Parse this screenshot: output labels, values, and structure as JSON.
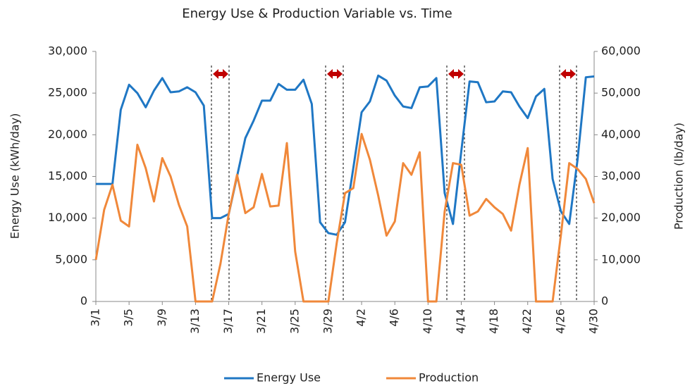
{
  "chart_data": {
    "type": "line",
    "title": "Energy Use & Production Variable vs. Time",
    "y_label": "Energy Use (kWh/day)",
    "y2_label": "Production (lb/day)",
    "categories": [
      "3/1",
      null,
      null,
      null,
      "3/5",
      null,
      null,
      null,
      "3/9",
      null,
      null,
      null,
      "3/13",
      null,
      null,
      null,
      "3/17",
      null,
      null,
      null,
      "3/21",
      null,
      null,
      null,
      "3/25",
      null,
      null,
      null,
      "3/29",
      null,
      null,
      null,
      "4/2",
      null,
      null,
      null,
      "4/6",
      null,
      null,
      null,
      "4/10",
      null,
      null,
      null,
      "4/14",
      null,
      null,
      null,
      "4/18",
      null,
      null,
      null,
      "4/22",
      null,
      null,
      null,
      "4/26",
      null,
      null,
      null,
      "4/30"
    ],
    "series": [
      {
        "name": "Energy Use",
        "color": "#1f77c4",
        "values": [
          14100,
          14100,
          14100,
          23000,
          26000,
          25000,
          23300,
          25300,
          26800,
          25100,
          25200,
          25700,
          25100,
          23500,
          10000,
          10000,
          10500,
          15000,
          19600,
          21700,
          24100,
          24100,
          26100,
          25400,
          25400,
          26600,
          23700,
          9500,
          8200,
          8000,
          9500,
          16000,
          22700,
          24000,
          27100,
          26500,
          24700,
          23400,
          23200,
          25700,
          25800,
          26800,
          13000,
          9300,
          18000,
          26400,
          26300,
          23900,
          24000,
          25200,
          25100,
          23400,
          22000,
          24600,
          25500,
          14700,
          10800,
          9300,
          17000,
          26900,
          27000
        ]
      },
      {
        "name": "Production",
        "color": "#f0883a",
        "axis": "y2",
        "values": [
          10000,
          22000,
          28000,
          19400,
          18000,
          37600,
          32000,
          24000,
          34400,
          30000,
          23200,
          18000,
          0,
          0,
          0,
          9000,
          21000,
          30400,
          21200,
          22600,
          30600,
          22800,
          23000,
          38000,
          12000,
          0,
          0,
          0,
          0,
          14000,
          26000,
          27200,
          40200,
          34000,
          25400,
          15800,
          19200,
          33200,
          30400,
          35800,
          0,
          0,
          21600,
          33200,
          32800,
          20600,
          21600,
          24600,
          22600,
          21000,
          17000,
          28000,
          36800,
          0,
          0,
          0,
          16000,
          33200,
          31800,
          29400,
          23600
        ]
      }
    ],
    "ylim": [
      0,
      30000
    ],
    "yticks": [
      0,
      {
        "value": 5000,
        "label": "5,000"
      },
      {
        "value": 10000,
        "label": "10,000"
      },
      {
        "value": 15000,
        "label": "15,000"
      },
      {
        "value": 20000,
        "label": "20,000"
      },
      {
        "value": 25000,
        "label": "25,000"
      },
      {
        "value": 30000,
        "label": "30,000"
      }
    ],
    "y2lim": [
      0,
      60000
    ],
    "y2ticks": [
      0,
      {
        "value": 10000,
        "label": "10,000"
      },
      {
        "value": 20000,
        "label": "20,000"
      },
      {
        "value": 30000,
        "label": "30,000"
      },
      {
        "value": 40000,
        "label": "40,000"
      },
      {
        "value": 50000,
        "label": "50,000"
      },
      {
        "value": 60000,
        "label": "60,000"
      }
    ],
    "legend": "bottom"
  }
}
